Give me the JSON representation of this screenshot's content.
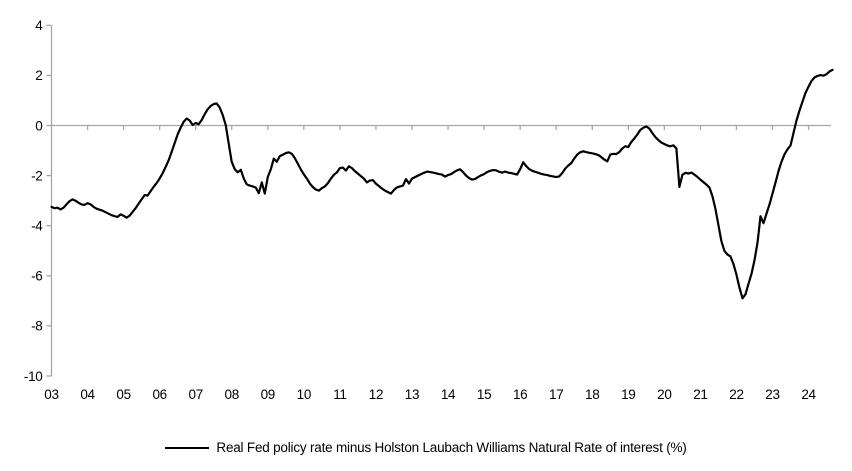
{
  "styles": {
    "background": "#ffffff",
    "axis_color": "#a6a6a6",
    "line_color": "#000000",
    "text_color": "#000000"
  },
  "legend": {
    "label": "Real Fed policy rate minus Holston Laubach Williams Natural Rate of interest (%)",
    "marker": "line"
  },
  "chart_data": {
    "type": "line",
    "title": "",
    "xlabel": "",
    "ylabel": "",
    "ylim": [
      -10,
      4
    ],
    "y_ticks": [
      4,
      2,
      0,
      -2,
      -4,
      -6,
      -8,
      -10
    ],
    "x_tick_years": [
      2003,
      2004,
      2005,
      2006,
      2007,
      2008,
      2009,
      2010,
      2011,
      2012,
      2013,
      2014,
      2015,
      2016,
      2017,
      2018,
      2019,
      2020,
      2021,
      2022,
      2023,
      2024
    ],
    "x_tick_labels": [
      "03",
      "04",
      "05",
      "06",
      "07",
      "08",
      "09",
      "10",
      "11",
      "12",
      "13",
      "14",
      "15",
      "16",
      "17",
      "18",
      "19",
      "20",
      "21",
      "22",
      "23",
      "24"
    ],
    "grid": "zero-line-only",
    "legend_position": "bottom-center",
    "series": [
      {
        "name": "Real Fed policy rate minus Holston Laubach Williams Natural Rate of interest (%)",
        "color": "#000000",
        "x_start": 2003.0,
        "x_step": 0.0833333,
        "values": [
          -3.25,
          -3.3,
          -3.28,
          -3.35,
          -3.28,
          -3.15,
          -3.02,
          -2.95,
          -3.0,
          -3.08,
          -3.15,
          -3.17,
          -3.1,
          -3.15,
          -3.25,
          -3.32,
          -3.36,
          -3.4,
          -3.46,
          -3.52,
          -3.58,
          -3.62,
          -3.65,
          -3.55,
          -3.6,
          -3.68,
          -3.6,
          -3.45,
          -3.3,
          -3.12,
          -2.95,
          -2.78,
          -2.8,
          -2.62,
          -2.45,
          -2.3,
          -2.12,
          -1.9,
          -1.65,
          -1.38,
          -1.05,
          -0.7,
          -0.35,
          -0.08,
          0.15,
          0.28,
          0.2,
          0.02,
          0.1,
          0.05,
          0.22,
          0.45,
          0.65,
          0.78,
          0.86,
          0.88,
          0.72,
          0.42,
          0.02,
          -0.72,
          -1.45,
          -1.75,
          -1.87,
          -1.77,
          -2.12,
          -2.35,
          -2.4,
          -2.43,
          -2.48,
          -2.7,
          -2.27,
          -2.72,
          -2.05,
          -1.75,
          -1.32,
          -1.45,
          -1.22,
          -1.17,
          -1.1,
          -1.07,
          -1.13,
          -1.3,
          -1.52,
          -1.75,
          -1.95,
          -2.12,
          -2.32,
          -2.46,
          -2.56,
          -2.6,
          -2.5,
          -2.43,
          -2.3,
          -2.12,
          -1.97,
          -1.87,
          -1.7,
          -1.68,
          -1.8,
          -1.63,
          -1.7,
          -1.82,
          -1.92,
          -2.02,
          -2.12,
          -2.27,
          -2.2,
          -2.18,
          -2.32,
          -2.42,
          -2.52,
          -2.6,
          -2.66,
          -2.72,
          -2.57,
          -2.47,
          -2.43,
          -2.4,
          -2.14,
          -2.32,
          -2.12,
          -2.06,
          -2.0,
          -1.94,
          -1.89,
          -1.84,
          -1.86,
          -1.88,
          -1.91,
          -1.94,
          -1.96,
          -2.04,
          -1.98,
          -1.94,
          -1.86,
          -1.79,
          -1.75,
          -1.86,
          -2.0,
          -2.1,
          -2.16,
          -2.13,
          -2.06,
          -1.99,
          -1.94,
          -1.86,
          -1.81,
          -1.78,
          -1.79,
          -1.85,
          -1.88,
          -1.84,
          -1.88,
          -1.9,
          -1.93,
          -1.96,
          -1.75,
          -1.47,
          -1.62,
          -1.74,
          -1.81,
          -1.85,
          -1.89,
          -1.93,
          -1.96,
          -1.98,
          -2.01,
          -2.03,
          -2.06,
          -2.03,
          -1.9,
          -1.72,
          -1.6,
          -1.5,
          -1.32,
          -1.16,
          -1.07,
          -1.03,
          -1.06,
          -1.09,
          -1.11,
          -1.14,
          -1.18,
          -1.26,
          -1.36,
          -1.43,
          -1.16,
          -1.13,
          -1.14,
          -1.06,
          -0.92,
          -0.83,
          -0.86,
          -0.66,
          -0.52,
          -0.36,
          -0.18,
          -0.09,
          -0.04,
          -0.12,
          -0.3,
          -0.46,
          -0.58,
          -0.68,
          -0.74,
          -0.8,
          -0.83,
          -0.79,
          -0.92,
          -2.45,
          -1.97,
          -1.89,
          -1.92,
          -1.88,
          -1.96,
          -2.05,
          -2.16,
          -2.26,
          -2.36,
          -2.47,
          -2.82,
          -3.32,
          -3.97,
          -4.62,
          -5.0,
          -5.15,
          -5.22,
          -5.52,
          -5.95,
          -6.48,
          -6.9,
          -6.74,
          -6.32,
          -5.92,
          -5.38,
          -4.68,
          -3.62,
          -3.9,
          -3.52,
          -3.15,
          -2.72,
          -2.28,
          -1.82,
          -1.45,
          -1.15,
          -0.95,
          -0.8,
          -0.3,
          0.2,
          0.6,
          0.95,
          1.3,
          1.55,
          1.78,
          1.92,
          1.98,
          2.01,
          1.99,
          2.05,
          2.16,
          2.22
        ]
      }
    ]
  }
}
